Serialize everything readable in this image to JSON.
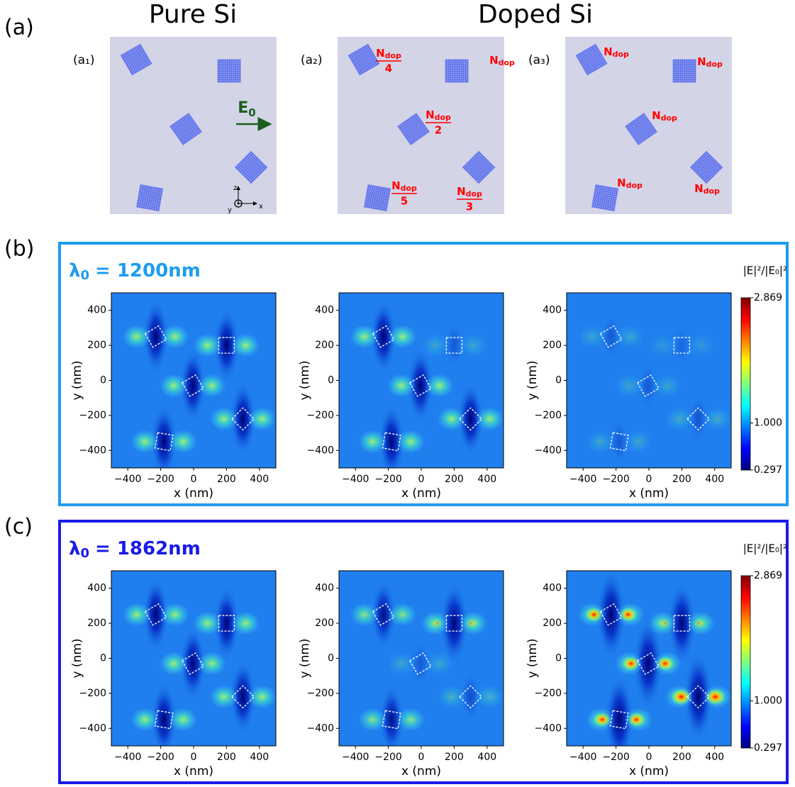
{
  "panel_labels": [
    "(a)",
    "(b)",
    "(c)"
  ],
  "headings": [
    "Pure Si",
    "Doped Si"
  ],
  "schematics": [
    {
      "label": "(a₁)",
      "field": {
        "symbol": "E",
        "sub": "0"
      },
      "axes": [
        "z",
        "y",
        "x"
      ]
    },
    {
      "label": "(a₂)",
      "dopants": [
        {
          "symbol": "N",
          "sub": "dop",
          "denominator": "4"
        },
        {
          "symbol": "N",
          "sub": "dop"
        },
        {
          "symbol": "N",
          "sub": "dop",
          "denominator": "2"
        },
        {
          "symbol": "N",
          "sub": "dop",
          "denominator": "3"
        },
        {
          "symbol": "N",
          "sub": "dop",
          "denominator": "5"
        }
      ]
    },
    {
      "label": "(a₃)",
      "dopants": [
        {
          "symbol": "N",
          "sub": "dop"
        },
        {
          "symbol": "N",
          "sub": "dop"
        },
        {
          "symbol": "N",
          "sub": "dop"
        },
        {
          "symbol": "N",
          "sub": "dop"
        },
        {
          "symbol": "N",
          "sub": "dop"
        }
      ]
    }
  ],
  "map_axes": {
    "x_label": "x (nm)",
    "y_label": "y (nm)",
    "lim": [
      -500,
      500
    ],
    "ticks": [
      {
        "value": -400,
        "label": "−400"
      },
      {
        "value": -200,
        "label": "−200"
      },
      0,
      200,
      400
    ]
  },
  "rows": [
    {
      "wavelength": {
        "symbol": "λ",
        "sub": "0",
        "text": "= 1200nm"
      },
      "colorbar": {
        "label": "|E|²/|E₀|²",
        "lim": [
          0.297,
          2.869
        ],
        "ticks": [
          2.869,
          {
            "value": 1,
            "label": "1.000"
          },
          0.297
        ]
      }
    },
    {
      "wavelength": {
        "symbol": "λ",
        "sub": "0",
        "text": "= 1862nm"
      },
      "colorbar": {
        "label": "|E|²/|E₀|²",
        "lim": [
          0.297,
          2.869
        ],
        "ticks": [
          2.869,
          {
            "value": 1,
            "label": "1.000"
          },
          0.297
        ]
      }
    }
  ]
}
